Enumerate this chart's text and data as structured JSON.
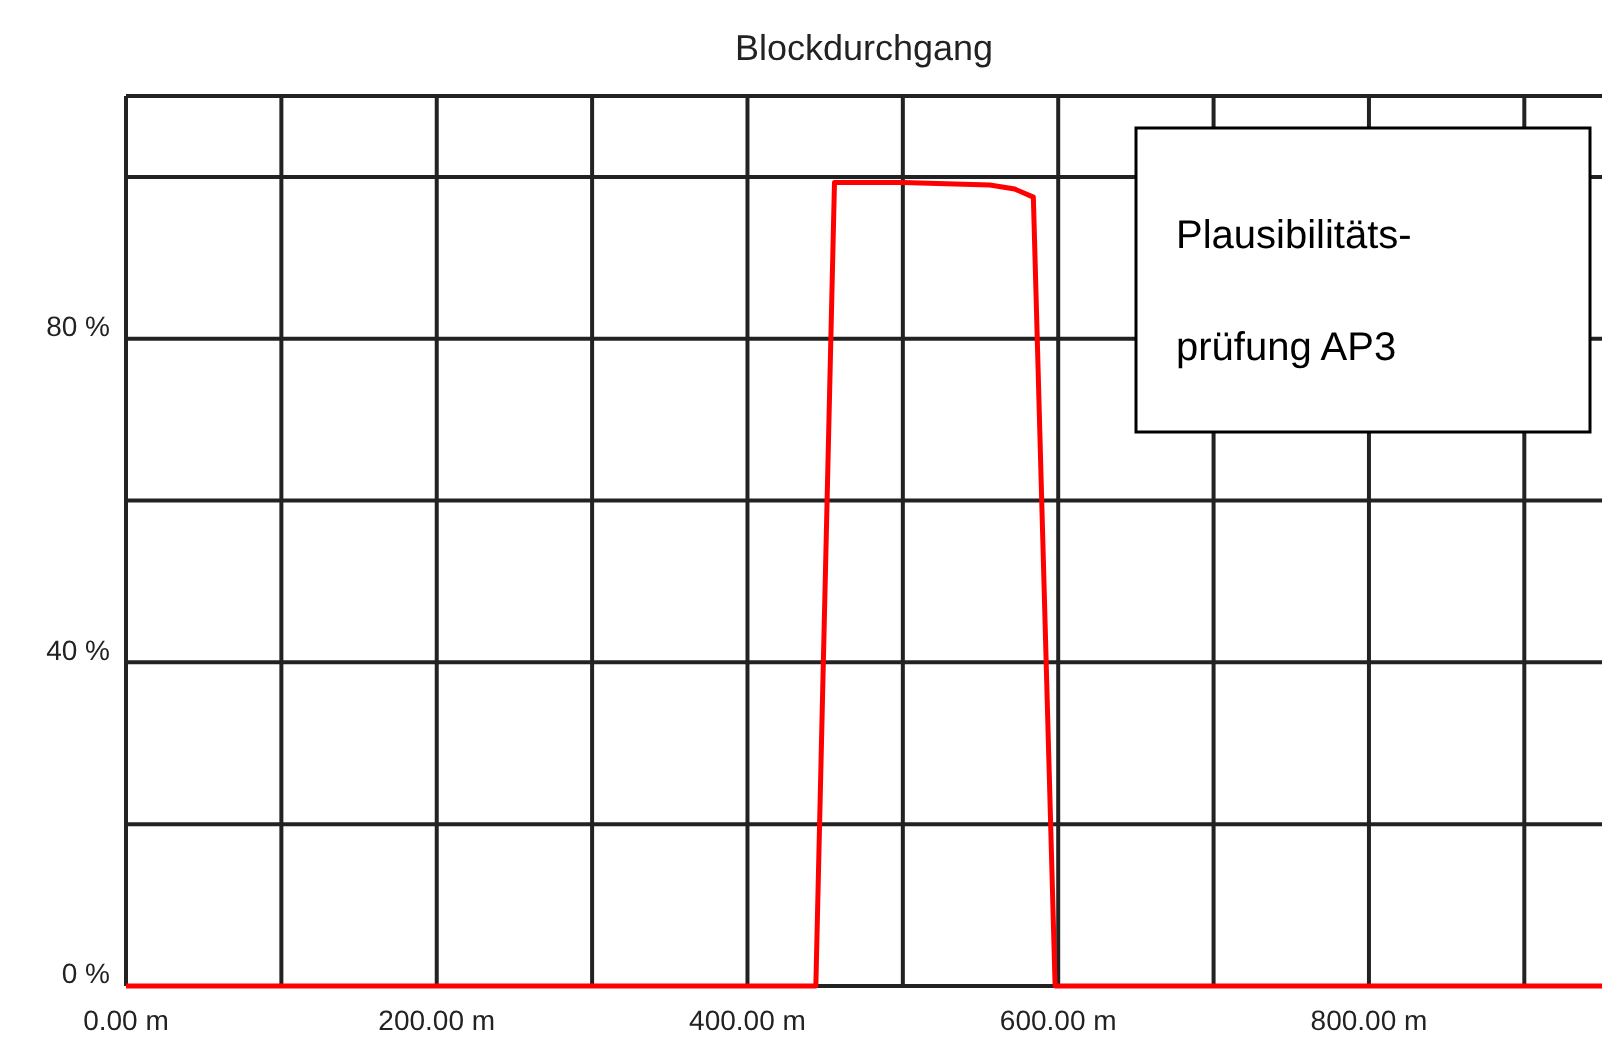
{
  "chart_data": {
    "type": "line",
    "title": "Blockdurchgang",
    "x": [
      0,
      444,
      456,
      500,
      556,
      572,
      584,
      598,
      950
    ],
    "series": [
      {
        "color": "#ff0000",
        "values": [
          0,
          0,
          99.3,
          99.3,
          99,
          98.5,
          97.5,
          0,
          0
        ]
      }
    ],
    "xlim": [
      0,
      950
    ],
    "xticks": [
      {
        "value": 0,
        "label": "0.00 m"
      },
      {
        "value": 100,
        "label": null
      },
      {
        "value": 200,
        "label": "200.00 m"
      },
      {
        "value": 300,
        "label": null
      },
      {
        "value": 400,
        "label": "400.00 m"
      },
      {
        "value": 500,
        "label": null
      },
      {
        "value": 600,
        "label": "600.00 m"
      },
      {
        "value": 700,
        "label": null
      },
      {
        "value": 800,
        "label": "800.00 m"
      },
      {
        "value": 900,
        "label": null
      }
    ],
    "ylim": [
      0,
      110
    ],
    "yticks": [
      {
        "value": 0,
        "label": "0 %"
      },
      {
        "value": 20,
        "label": null
      },
      {
        "value": 40,
        "label": "40 %"
      },
      {
        "value": 60,
        "label": null
      },
      {
        "value": 80,
        "label": "80 %"
      },
      {
        "value": 100,
        "label": null
      }
    ],
    "grid": true,
    "annotations": [
      "Plausibilitäts-\nprüfung AP3"
    ]
  }
}
